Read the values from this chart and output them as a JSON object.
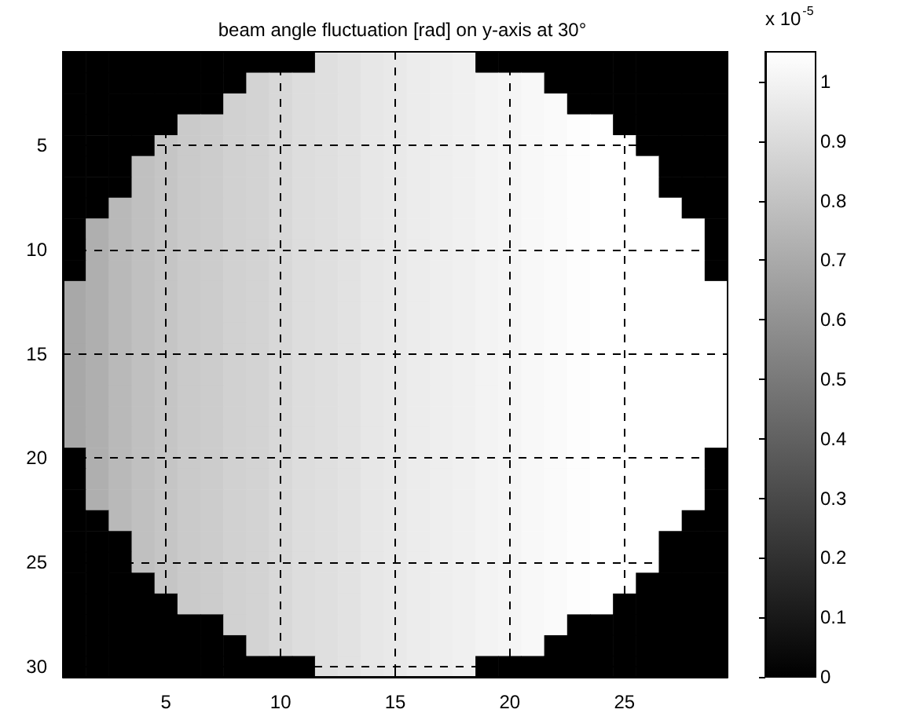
{
  "chart_data": {
    "type": "heatmap",
    "title": "beam angle fluctuation [rad] on y-axis at 30°",
    "clabel": "x 10$^{-5}$",
    "categories": [
      null,
      null,
      null,
      null,
      "5",
      null,
      null,
      null,
      null,
      "10",
      null,
      null,
      null,
      null,
      "15",
      null,
      null,
      null,
      null,
      "20",
      null,
      null,
      null,
      null,
      "25",
      null,
      null,
      null,
      null
    ],
    "y_categories": [
      null,
      null,
      null,
      null,
      "5",
      null,
      null,
      null,
      null,
      "10",
      null,
      null,
      null,
      null,
      "15",
      null,
      null,
      null,
      null,
      "20",
      null,
      null,
      null,
      null,
      "25",
      null,
      null,
      null,
      null,
      "30"
    ],
    "clim": [
      0,
      1.05
    ],
    "cticks": [
      0,
      0.1,
      0.2,
      0.3,
      0.4,
      0.5,
      0.6,
      0.7,
      0.8,
      0.9,
      1
    ],
    "grid": true,
    "cells": [
      [
        0,
        0,
        0,
        0,
        0,
        0,
        0,
        0,
        0,
        0,
        0,
        0.92,
        0.93,
        0.95,
        0.96,
        0.97,
        0.98,
        0.99,
        0,
        0,
        0,
        0,
        0,
        0,
        0,
        0,
        0,
        0,
        0
      ],
      [
        0,
        0,
        0,
        0,
        0,
        0,
        0,
        0,
        0.87,
        0.89,
        0.91,
        0.92,
        0.93,
        0.95,
        0.96,
        0.97,
        0.98,
        0.99,
        1.0,
        1.01,
        1.02,
        0,
        0,
        0,
        0,
        0,
        0,
        0,
        0
      ],
      [
        0,
        0,
        0,
        0,
        0,
        0,
        0,
        0.86,
        0.87,
        0.89,
        0.91,
        0.92,
        0.93,
        0.95,
        0.96,
        0.97,
        0.98,
        0.99,
        1.0,
        1.01,
        1.02,
        1.03,
        0,
        0,
        0,
        0,
        0,
        0,
        0
      ],
      [
        0,
        0,
        0,
        0,
        0,
        0.83,
        0.84,
        0.86,
        0.87,
        0.89,
        0.91,
        0.92,
        0.93,
        0.95,
        0.96,
        0.97,
        0.98,
        0.99,
        1.0,
        1.01,
        1.02,
        1.03,
        1.04,
        1.05,
        0,
        0,
        0,
        0,
        0
      ],
      [
        0,
        0,
        0,
        0,
        0.81,
        0.83,
        0.84,
        0.86,
        0.87,
        0.89,
        0.91,
        0.92,
        0.93,
        0.95,
        0.96,
        0.97,
        0.98,
        0.99,
        1.0,
        1.01,
        1.02,
        1.03,
        1.04,
        1.05,
        1.05,
        0,
        0,
        0,
        0
      ],
      [
        0,
        0,
        0,
        0.79,
        0.81,
        0.83,
        0.84,
        0.86,
        0.87,
        0.89,
        0.91,
        0.92,
        0.93,
        0.95,
        0.96,
        0.97,
        0.98,
        0.99,
        1.0,
        1.01,
        1.02,
        1.03,
        1.04,
        1.05,
        1.05,
        1.05,
        0,
        0,
        0
      ],
      [
        0,
        0,
        0,
        0.79,
        0.81,
        0.83,
        0.84,
        0.86,
        0.87,
        0.89,
        0.91,
        0.92,
        0.93,
        0.95,
        0.96,
        0.97,
        0.98,
        0.99,
        1.0,
        1.01,
        1.02,
        1.03,
        1.04,
        1.05,
        1.05,
        1.05,
        0,
        0,
        0
      ],
      [
        0,
        0,
        0.76,
        0.79,
        0.81,
        0.83,
        0.84,
        0.86,
        0.87,
        0.89,
        0.91,
        0.92,
        0.93,
        0.95,
        0.96,
        0.97,
        0.98,
        0.99,
        1.0,
        1.01,
        1.02,
        1.03,
        1.04,
        1.05,
        1.05,
        1.05,
        1.05,
        0,
        0
      ],
      [
        0,
        0.72,
        0.76,
        0.79,
        0.81,
        0.83,
        0.84,
        0.86,
        0.87,
        0.89,
        0.91,
        0.92,
        0.93,
        0.95,
        0.96,
        0.97,
        0.98,
        0.99,
        1.0,
        1.01,
        1.02,
        1.03,
        1.04,
        1.05,
        1.05,
        1.05,
        1.05,
        1.05,
        0
      ],
      [
        0,
        0.72,
        0.76,
        0.79,
        0.81,
        0.83,
        0.84,
        0.86,
        0.87,
        0.89,
        0.91,
        0.92,
        0.93,
        0.95,
        0.96,
        0.97,
        0.98,
        0.99,
        1.0,
        1.01,
        1.02,
        1.03,
        1.04,
        1.05,
        1.05,
        1.05,
        1.05,
        1.05,
        0
      ],
      [
        0,
        0.72,
        0.76,
        0.79,
        0.81,
        0.83,
        0.84,
        0.86,
        0.87,
        0.89,
        0.91,
        0.92,
        0.93,
        0.95,
        0.96,
        0.97,
        0.98,
        0.99,
        1.0,
        1.01,
        1.02,
        1.03,
        1.04,
        1.05,
        1.05,
        1.05,
        1.05,
        1.05,
        0
      ],
      [
        0.69,
        0.72,
        0.76,
        0.79,
        0.81,
        0.83,
        0.84,
        0.86,
        0.87,
        0.89,
        0.91,
        0.92,
        0.93,
        0.95,
        0.96,
        0.97,
        0.98,
        0.99,
        1.0,
        1.01,
        1.02,
        1.03,
        1.04,
        1.05,
        1.05,
        1.05,
        1.05,
        1.05,
        1.05
      ],
      [
        0.69,
        0.72,
        0.76,
        0.79,
        0.81,
        0.83,
        0.84,
        0.86,
        0.87,
        0.89,
        0.91,
        0.92,
        0.93,
        0.95,
        0.96,
        0.97,
        0.98,
        0.99,
        1.0,
        1.01,
        1.02,
        1.03,
        1.04,
        1.05,
        1.05,
        1.05,
        1.05,
        1.05,
        1.05
      ],
      [
        0.69,
        0.72,
        0.76,
        0.79,
        0.81,
        0.83,
        0.84,
        0.86,
        0.87,
        0.89,
        0.91,
        0.92,
        0.93,
        0.95,
        0.96,
        0.97,
        0.98,
        0.99,
        1.0,
        1.01,
        1.02,
        1.03,
        1.04,
        1.05,
        1.05,
        1.05,
        1.05,
        1.05,
        1.05
      ],
      [
        0.69,
        0.72,
        0.76,
        0.79,
        0.81,
        0.83,
        0.84,
        0.86,
        0.87,
        0.89,
        0.91,
        0.92,
        0.93,
        0.95,
        0.96,
        0.97,
        0.98,
        0.99,
        1.0,
        1.01,
        1.02,
        1.03,
        1.04,
        1.05,
        1.05,
        1.05,
        1.05,
        1.05,
        1.05
      ],
      [
        0.69,
        0.72,
        0.76,
        0.79,
        0.81,
        0.83,
        0.84,
        0.86,
        0.87,
        0.89,
        0.91,
        0.92,
        0.93,
        0.95,
        0.96,
        0.97,
        0.98,
        0.99,
        1.0,
        1.01,
        1.02,
        1.03,
        1.04,
        1.05,
        1.05,
        1.05,
        1.05,
        1.05,
        1.05
      ],
      [
        0.69,
        0.72,
        0.76,
        0.79,
        0.81,
        0.83,
        0.84,
        0.86,
        0.87,
        0.89,
        0.91,
        0.92,
        0.93,
        0.95,
        0.96,
        0.97,
        0.98,
        0.99,
        1.0,
        1.01,
        1.02,
        1.03,
        1.04,
        1.05,
        1.05,
        1.05,
        1.05,
        1.05,
        1.05
      ],
      [
        0.69,
        0.72,
        0.76,
        0.79,
        0.81,
        0.83,
        0.84,
        0.86,
        0.87,
        0.89,
        0.91,
        0.92,
        0.93,
        0.95,
        0.96,
        0.97,
        0.98,
        0.99,
        1.0,
        1.01,
        1.02,
        1.03,
        1.04,
        1.05,
        1.05,
        1.05,
        1.05,
        1.05,
        1.05
      ],
      [
        0.69,
        0.72,
        0.76,
        0.79,
        0.81,
        0.83,
        0.84,
        0.86,
        0.87,
        0.89,
        0.91,
        0.92,
        0.93,
        0.95,
        0.96,
        0.97,
        0.98,
        0.99,
        1.0,
        1.01,
        1.02,
        1.03,
        1.04,
        1.05,
        1.05,
        1.05,
        1.05,
        1.05,
        1.05
      ],
      [
        0,
        0.72,
        0.76,
        0.79,
        0.81,
        0.83,
        0.84,
        0.86,
        0.87,
        0.89,
        0.91,
        0.92,
        0.93,
        0.95,
        0.96,
        0.97,
        0.98,
        0.99,
        1.0,
        1.01,
        1.02,
        1.03,
        1.04,
        1.05,
        1.05,
        1.05,
        1.05,
        1.05,
        0
      ],
      [
        0,
        0.72,
        0.76,
        0.79,
        0.81,
        0.83,
        0.84,
        0.86,
        0.87,
        0.89,
        0.91,
        0.92,
        0.93,
        0.95,
        0.96,
        0.97,
        0.98,
        0.99,
        1.0,
        1.01,
        1.02,
        1.03,
        1.04,
        1.05,
        1.05,
        1.05,
        1.05,
        1.05,
        0
      ],
      [
        0,
        0.72,
        0.76,
        0.79,
        0.81,
        0.83,
        0.84,
        0.86,
        0.87,
        0.89,
        0.91,
        0.92,
        0.93,
        0.95,
        0.96,
        0.97,
        0.98,
        0.99,
        1.0,
        1.01,
        1.02,
        1.03,
        1.04,
        1.05,
        1.05,
        1.05,
        1.05,
        1.05,
        0
      ],
      [
        0,
        0,
        0.76,
        0.79,
        0.81,
        0.83,
        0.84,
        0.86,
        0.87,
        0.89,
        0.91,
        0.92,
        0.93,
        0.95,
        0.96,
        0.97,
        0.98,
        0.99,
        1.0,
        1.01,
        1.02,
        1.03,
        1.04,
        1.05,
        1.05,
        1.05,
        1.05,
        0,
        0
      ],
      [
        0,
        0,
        0,
        0.79,
        0.81,
        0.83,
        0.84,
        0.86,
        0.87,
        0.89,
        0.91,
        0.92,
        0.93,
        0.95,
        0.96,
        0.97,
        0.98,
        0.99,
        1.0,
        1.01,
        1.02,
        1.03,
        1.04,
        1.05,
        1.05,
        1.05,
        0,
        0,
        0
      ],
      [
        0,
        0,
        0,
        0.79,
        0.81,
        0.83,
        0.84,
        0.86,
        0.87,
        0.89,
        0.91,
        0.92,
        0.93,
        0.95,
        0.96,
        0.97,
        0.98,
        0.99,
        1.0,
        1.01,
        1.02,
        1.03,
        1.04,
        1.05,
        1.05,
        1.05,
        0,
        0,
        0
      ],
      [
        0,
        0,
        0,
        0,
        0.81,
        0.83,
        0.84,
        0.86,
        0.87,
        0.89,
        0.91,
        0.92,
        0.93,
        0.95,
        0.96,
        0.97,
        0.98,
        0.99,
        1.0,
        1.01,
        1.02,
        1.03,
        1.04,
        1.05,
        1.05,
        0,
        0,
        0,
        0
      ],
      [
        0,
        0,
        0,
        0,
        0,
        0.83,
        0.84,
        0.86,
        0.87,
        0.89,
        0.91,
        0.92,
        0.93,
        0.95,
        0.96,
        0.97,
        0.98,
        0.99,
        1.0,
        1.01,
        1.02,
        1.03,
        1.04,
        1.05,
        0,
        0,
        0,
        0,
        0
      ],
      [
        0,
        0,
        0,
        0,
        0,
        0,
        0,
        0.86,
        0.87,
        0.89,
        0.91,
        0.92,
        0.93,
        0.95,
        0.96,
        0.97,
        0.98,
        0.99,
        1.0,
        1.01,
        1.02,
        1.03,
        0,
        0,
        0,
        0,
        0,
        0,
        0
      ],
      [
        0,
        0,
        0,
        0,
        0,
        0,
        0,
        0,
        0.87,
        0.89,
        0.91,
        0.92,
        0.93,
        0.95,
        0.96,
        0.97,
        0.98,
        0.99,
        1.0,
        1.01,
        1.02,
        0,
        0,
        0,
        0,
        0,
        0,
        0,
        0
      ],
      [
        0,
        0,
        0,
        0,
        0,
        0,
        0,
        0,
        0,
        0,
        0,
        0.92,
        0.93,
        0.95,
        0.96,
        0.97,
        0.98,
        0.99,
        0,
        0,
        0,
        0,
        0,
        0,
        0,
        0,
        0,
        0,
        0
      ]
    ]
  }
}
